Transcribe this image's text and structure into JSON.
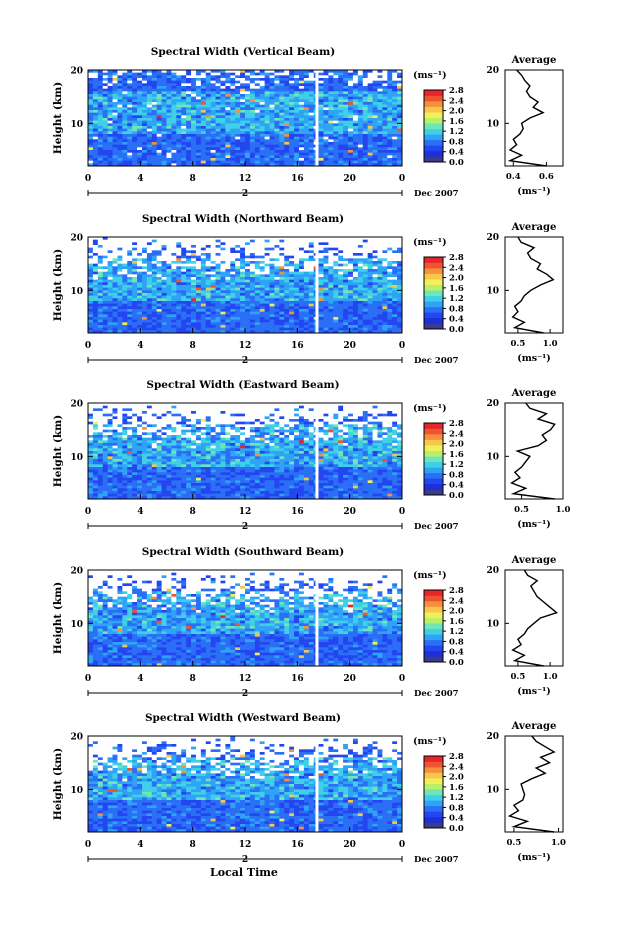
{
  "chart_data": [
    {
      "type": "heatmap",
      "title": "Spectral Width (Vertical Beam)",
      "ylabel": "Height (km)",
      "x_ticks": [
        "0",
        "4",
        "8",
        "12",
        "16",
        "20",
        "0"
      ],
      "y_ticks": [
        "10",
        "20"
      ],
      "xlim": [
        0,
        24
      ],
      "ylim": [
        2,
        20
      ],
      "date_marker": "2",
      "date_label": "Dec 2007",
      "gap_hour": 17.5,
      "colorbar": {
        "unit": "(ms⁻¹)",
        "ticks": [
          "2.8",
          "2.4",
          "2.0",
          "1.6",
          "1.2",
          "0.8",
          "0.4",
          "0.0"
        ],
        "range": [
          0,
          2.8
        ]
      },
      "average_profile": {
        "title": "Average",
        "xlabel": "(ms⁻¹)",
        "x_ticks": [
          "0.4",
          "0.6"
        ],
        "xlim": [
          0.35,
          0.7
        ],
        "y_ticks": [
          "10",
          "20"
        ],
        "ylim": [
          2,
          20
        ],
        "height_km": [
          2,
          3,
          4,
          5,
          6,
          7,
          8,
          9,
          10,
          11,
          12,
          13,
          14,
          15,
          16,
          17,
          18,
          19,
          20
        ],
        "width_ms": [
          0.6,
          0.38,
          0.45,
          0.38,
          0.42,
          0.4,
          0.44,
          0.46,
          0.45,
          0.5,
          0.58,
          0.52,
          0.55,
          0.5,
          0.48,
          0.5,
          0.47,
          0.45,
          0.42
        ]
      }
    },
    {
      "type": "heatmap",
      "title": "Spectral Width (Northward Beam)",
      "ylabel": "Height (km)",
      "x_ticks": [
        "0",
        "4",
        "8",
        "12",
        "16",
        "20",
        "0"
      ],
      "y_ticks": [
        "10",
        "20"
      ],
      "xlim": [
        0,
        24
      ],
      "ylim": [
        2,
        20
      ],
      "date_marker": "2",
      "date_label": "Dec 2007",
      "gap_hour": 17.5,
      "colorbar": {
        "unit": "(ms⁻¹)",
        "ticks": [
          "2.8",
          "2.4",
          "2.0",
          "1.6",
          "1.2",
          "0.8",
          "0.4",
          "0.0"
        ],
        "range": [
          0,
          2.8
        ]
      },
      "average_profile": {
        "title": "Average",
        "xlabel": "(ms⁻¹)",
        "x_ticks": [
          "0.5",
          "1.0"
        ],
        "xlim": [
          0.3,
          1.2
        ],
        "y_ticks": [
          "10",
          "20"
        ],
        "ylim": [
          2,
          20
        ],
        "height_km": [
          2,
          3,
          4,
          5,
          6,
          7,
          8,
          9,
          10,
          11,
          12,
          13,
          14,
          15,
          16,
          17,
          18,
          19,
          20
        ],
        "width_ms": [
          0.9,
          0.45,
          0.6,
          0.42,
          0.5,
          0.45,
          0.55,
          0.6,
          0.7,
          0.85,
          1.05,
          0.95,
          0.8,
          0.85,
          0.7,
          0.65,
          0.75,
          0.55,
          0.5
        ]
      }
    },
    {
      "type": "heatmap",
      "title": "Spectral Width (Eastward Beam)",
      "ylabel": "Height (km)",
      "x_ticks": [
        "0",
        "4",
        "8",
        "12",
        "16",
        "20",
        "0"
      ],
      "y_ticks": [
        "10",
        "20"
      ],
      "xlim": [
        0,
        24
      ],
      "ylim": [
        2,
        20
      ],
      "date_marker": "2",
      "date_label": "Dec 2007",
      "gap_hour": 17.5,
      "colorbar": {
        "unit": "(ms⁻¹)",
        "ticks": [
          "2.8",
          "2.4",
          "2.0",
          "1.6",
          "1.2",
          "0.8",
          "0.4",
          "0.0"
        ],
        "range": [
          0,
          2.8
        ]
      },
      "average_profile": {
        "title": "Average",
        "xlabel": "(ms⁻¹)",
        "x_ticks": [
          "0.5",
          "1.0"
        ],
        "xlim": [
          0.3,
          1.0
        ],
        "y_ticks": [
          "10",
          "20"
        ],
        "ylim": [
          2,
          20
        ],
        "height_km": [
          2,
          3,
          4,
          5,
          6,
          7,
          8,
          9,
          10,
          11,
          12,
          13,
          14,
          15,
          16,
          17,
          18,
          19,
          20
        ],
        "width_ms": [
          0.9,
          0.4,
          0.55,
          0.38,
          0.48,
          0.42,
          0.5,
          0.55,
          0.6,
          0.45,
          0.7,
          0.8,
          0.75,
          0.85,
          0.9,
          0.7,
          0.8,
          0.6,
          0.55
        ]
      }
    },
    {
      "type": "heatmap",
      "title": "Spectral Width (Southward Beam)",
      "ylabel": "Height (km)",
      "x_ticks": [
        "0",
        "4",
        "8",
        "12",
        "16",
        "20",
        "0"
      ],
      "y_ticks": [
        "10",
        "20"
      ],
      "xlim": [
        0,
        24
      ],
      "ylim": [
        2,
        20
      ],
      "date_marker": "2",
      "date_label": "Dec 2007",
      "gap_hour": 17.5,
      "colorbar": {
        "unit": "(ms⁻¹)",
        "ticks": [
          "2.8",
          "2.4",
          "2.0",
          "1.6",
          "1.2",
          "0.8",
          "0.4",
          "0.0"
        ],
        "range": [
          0,
          2.8
        ]
      },
      "average_profile": {
        "title": "Average",
        "xlabel": "(ms⁻¹)",
        "x_ticks": [
          "0.5",
          "1.0"
        ],
        "xlim": [
          0.3,
          1.2
        ],
        "y_ticks": [
          "10",
          "20"
        ],
        "ylim": [
          2,
          20
        ],
        "height_km": [
          2,
          3,
          4,
          5,
          6,
          7,
          8,
          9,
          10,
          11,
          12,
          13,
          14,
          15,
          16,
          17,
          18,
          19,
          20
        ],
        "width_ms": [
          0.9,
          0.45,
          0.6,
          0.42,
          0.55,
          0.5,
          0.6,
          0.65,
          0.75,
          0.85,
          1.1,
          1.0,
          0.9,
          0.8,
          0.75,
          0.7,
          0.8,
          0.65,
          0.6
        ]
      }
    },
    {
      "type": "heatmap",
      "title": "Spectral Width (Westward Beam)",
      "ylabel": "Height (km)",
      "x_ticks": [
        "0",
        "4",
        "8",
        "12",
        "16",
        "20",
        "0"
      ],
      "y_ticks": [
        "10",
        "20"
      ],
      "xlim": [
        0,
        24
      ],
      "ylim": [
        2,
        20
      ],
      "date_marker": "2",
      "date_label": "Dec 2007",
      "gap_hour": 17.5,
      "colorbar": {
        "unit": "(ms⁻¹)",
        "ticks": [
          "2.8",
          "2.4",
          "2.0",
          "1.6",
          "1.2",
          "0.8",
          "0.4",
          "0.0"
        ],
        "range": [
          0,
          2.8
        ]
      },
      "average_profile": {
        "title": "Average",
        "xlabel": "(ms⁻¹)",
        "x_ticks": [
          "0.5",
          "1.0"
        ],
        "xlim": [
          0.4,
          1.05
        ],
        "y_ticks": [
          "10",
          "20"
        ],
        "ylim": [
          2,
          20
        ],
        "height_km": [
          2,
          3,
          4,
          5,
          6,
          7,
          8,
          9,
          10,
          11,
          12,
          13,
          14,
          15,
          16,
          17,
          18,
          19,
          20
        ],
        "width_ms": [
          0.95,
          0.5,
          0.65,
          0.45,
          0.55,
          0.5,
          0.6,
          0.62,
          0.6,
          0.58,
          0.7,
          0.85,
          0.75,
          0.9,
          0.8,
          0.95,
          0.85,
          0.75,
          0.7
        ]
      }
    }
  ],
  "common": {
    "xlabel": "Local Time"
  },
  "colors": {
    "colormap": [
      "#3b3b8c",
      "#1c2fd8",
      "#2346f0",
      "#2a6ff6",
      "#2fa4f7",
      "#3fd0e8",
      "#6fe6b8",
      "#b9f06a",
      "#f1f05a",
      "#f7c64a",
      "#f5913c",
      "#ef5330",
      "#e6262a"
    ],
    "gap": "#ffffff"
  }
}
